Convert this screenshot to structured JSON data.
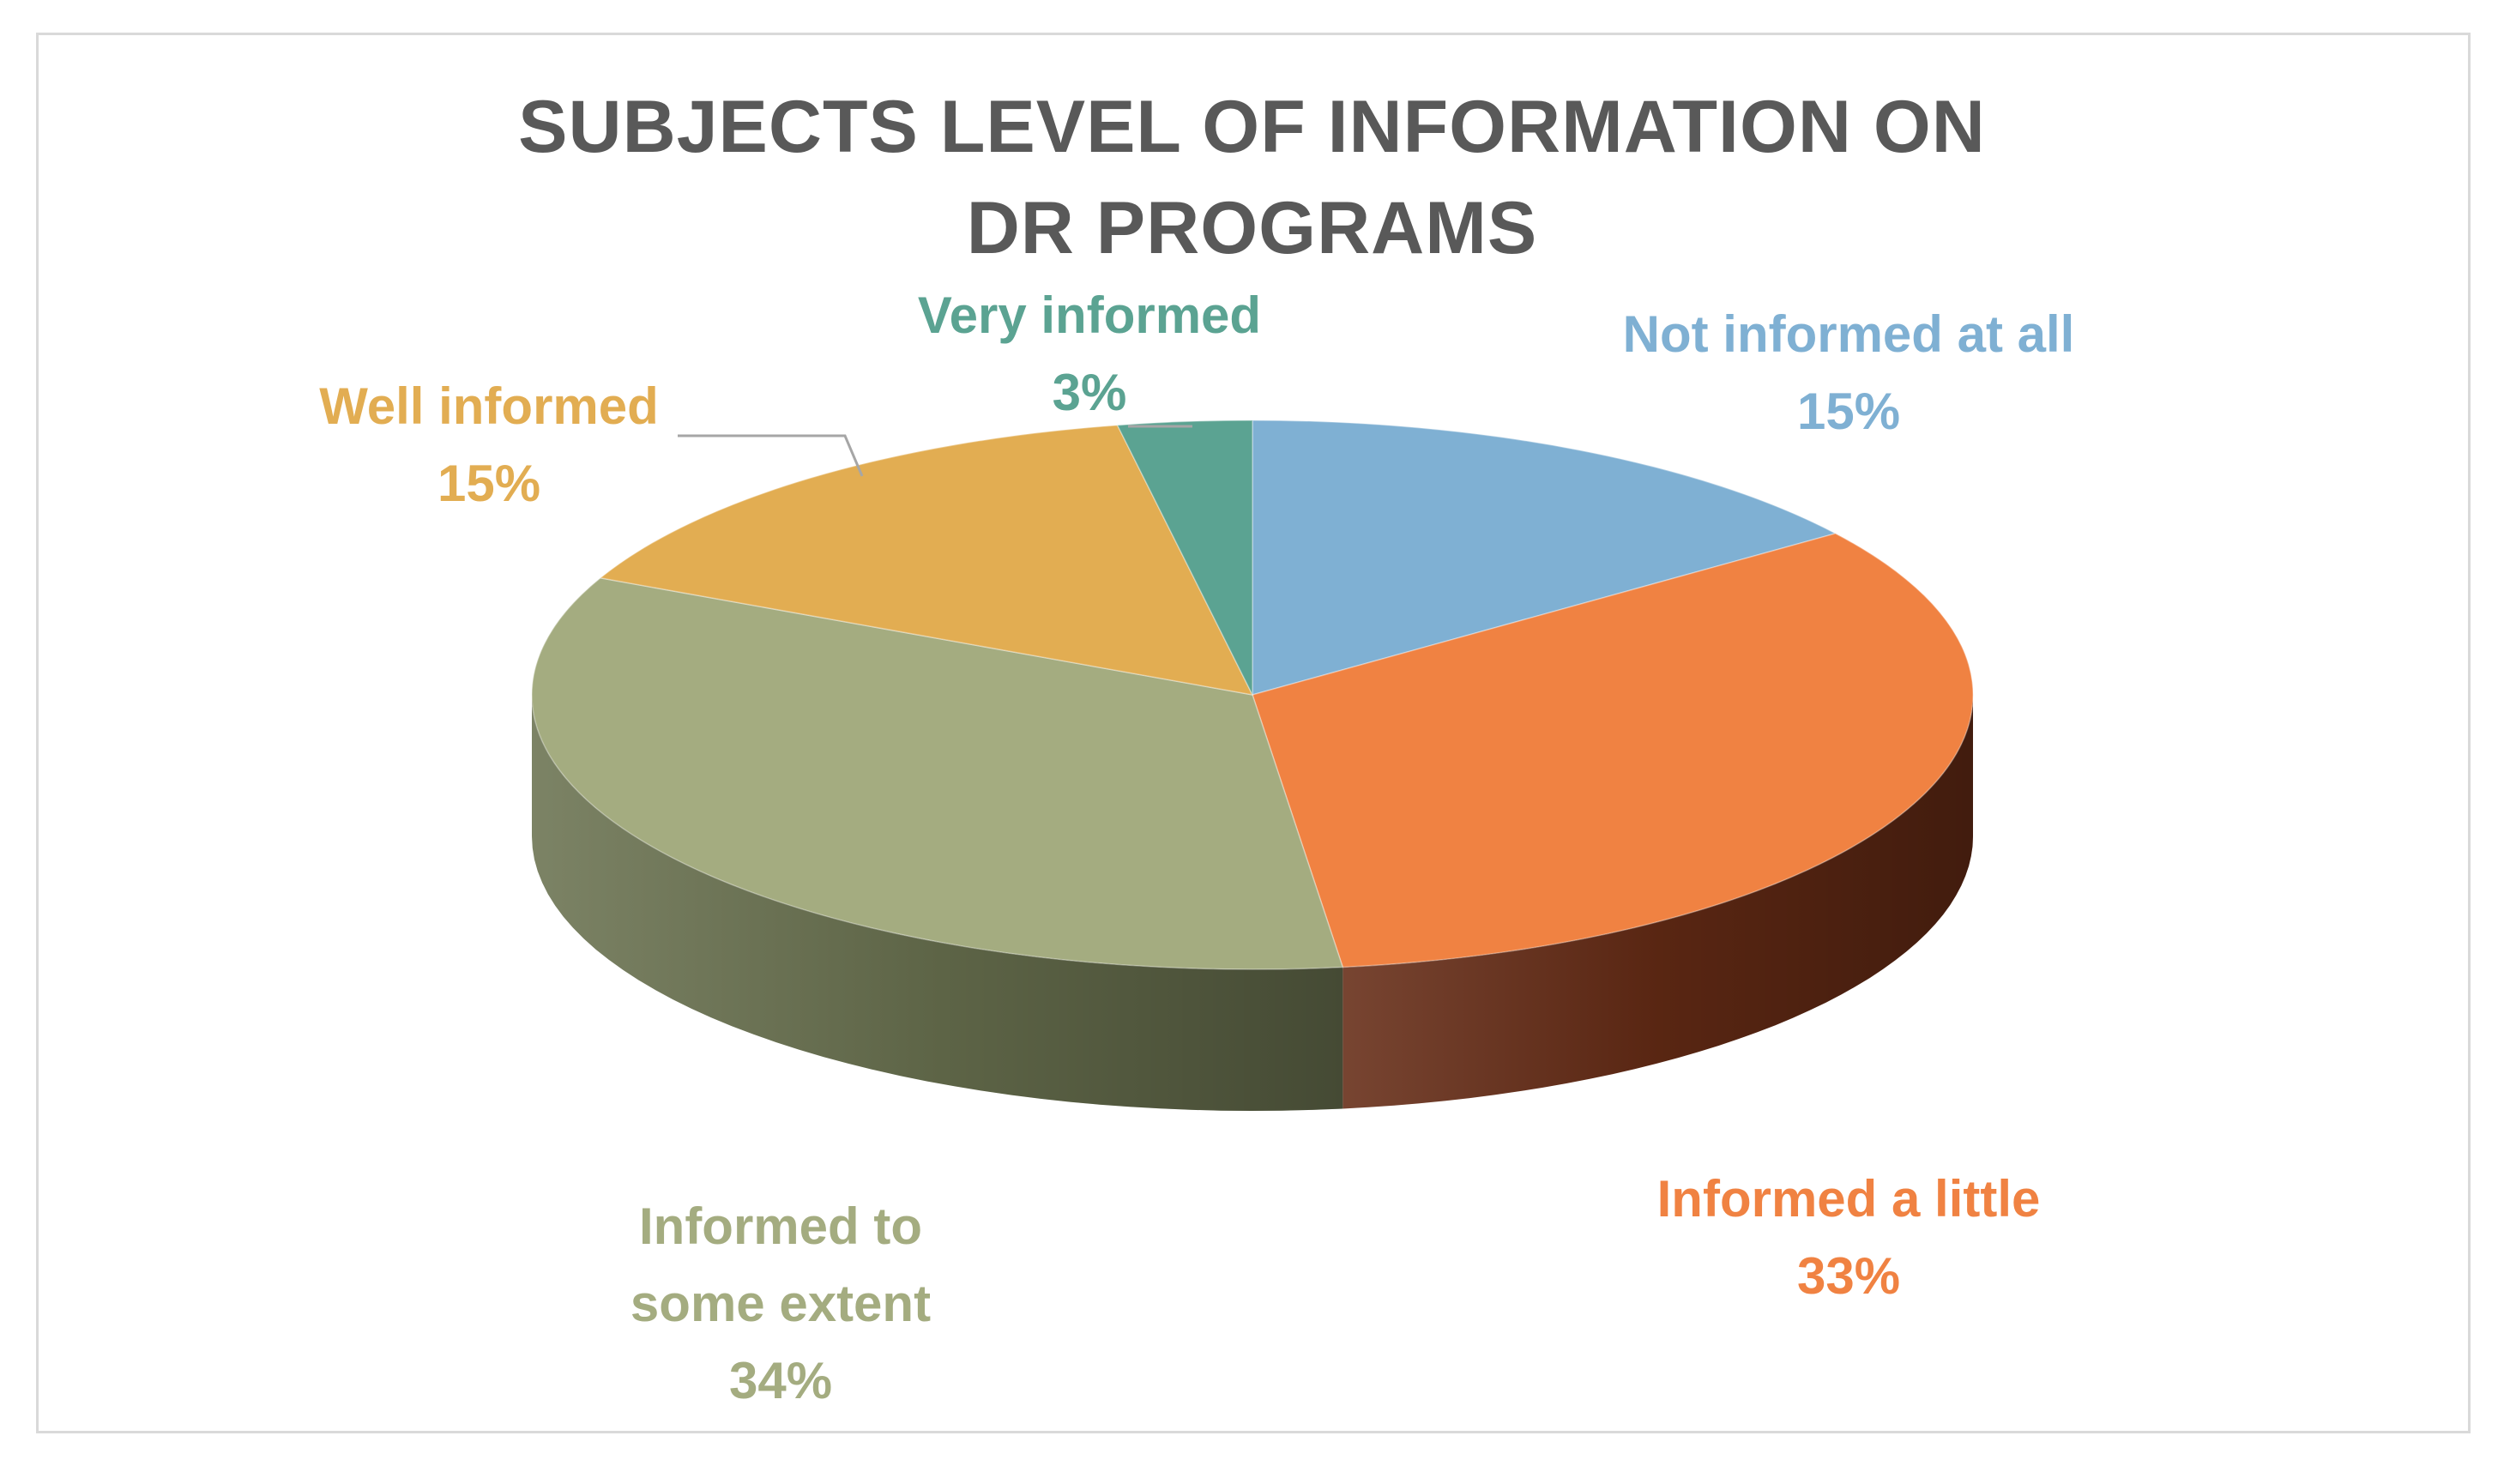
{
  "chart_data": {
    "type": "pie",
    "title_lines": [
      "SUBJECTS LEVEL OF INFORMATION ON",
      "DR PROGRAMS"
    ],
    "slices": [
      {
        "label_lines": [
          "Not informed at all"
        ],
        "percent_label": "15%",
        "value": 15,
        "color": "#7fb0d3",
        "side_color": "#4f7fa0"
      },
      {
        "label_lines": [
          "Informed a little"
        ],
        "percent_label": "33%",
        "value": 33,
        "color": "#f08242",
        "side_color": "#652b15"
      },
      {
        "label_lines": [
          "Informed to",
          "some extent"
        ],
        "percent_label": "34%",
        "value": 34,
        "color": "#a4ac80",
        "side_color": "#6a7250"
      },
      {
        "label_lines": [
          "Well informed"
        ],
        "percent_label": "15%",
        "value": 15,
        "color": "#e2ad52",
        "side_color": "#a87a2c"
      },
      {
        "label_lines": [
          "Very informed"
        ],
        "percent_label": "3%",
        "value": 3,
        "color": "#5ba392",
        "side_color": "#3b7366"
      }
    ],
    "label_colors": [
      "#7fb0d3",
      "#f08242",
      "#a4ac80",
      "#e2ad52",
      "#5ba392"
    ],
    "legend": "none",
    "style": "3d"
  }
}
